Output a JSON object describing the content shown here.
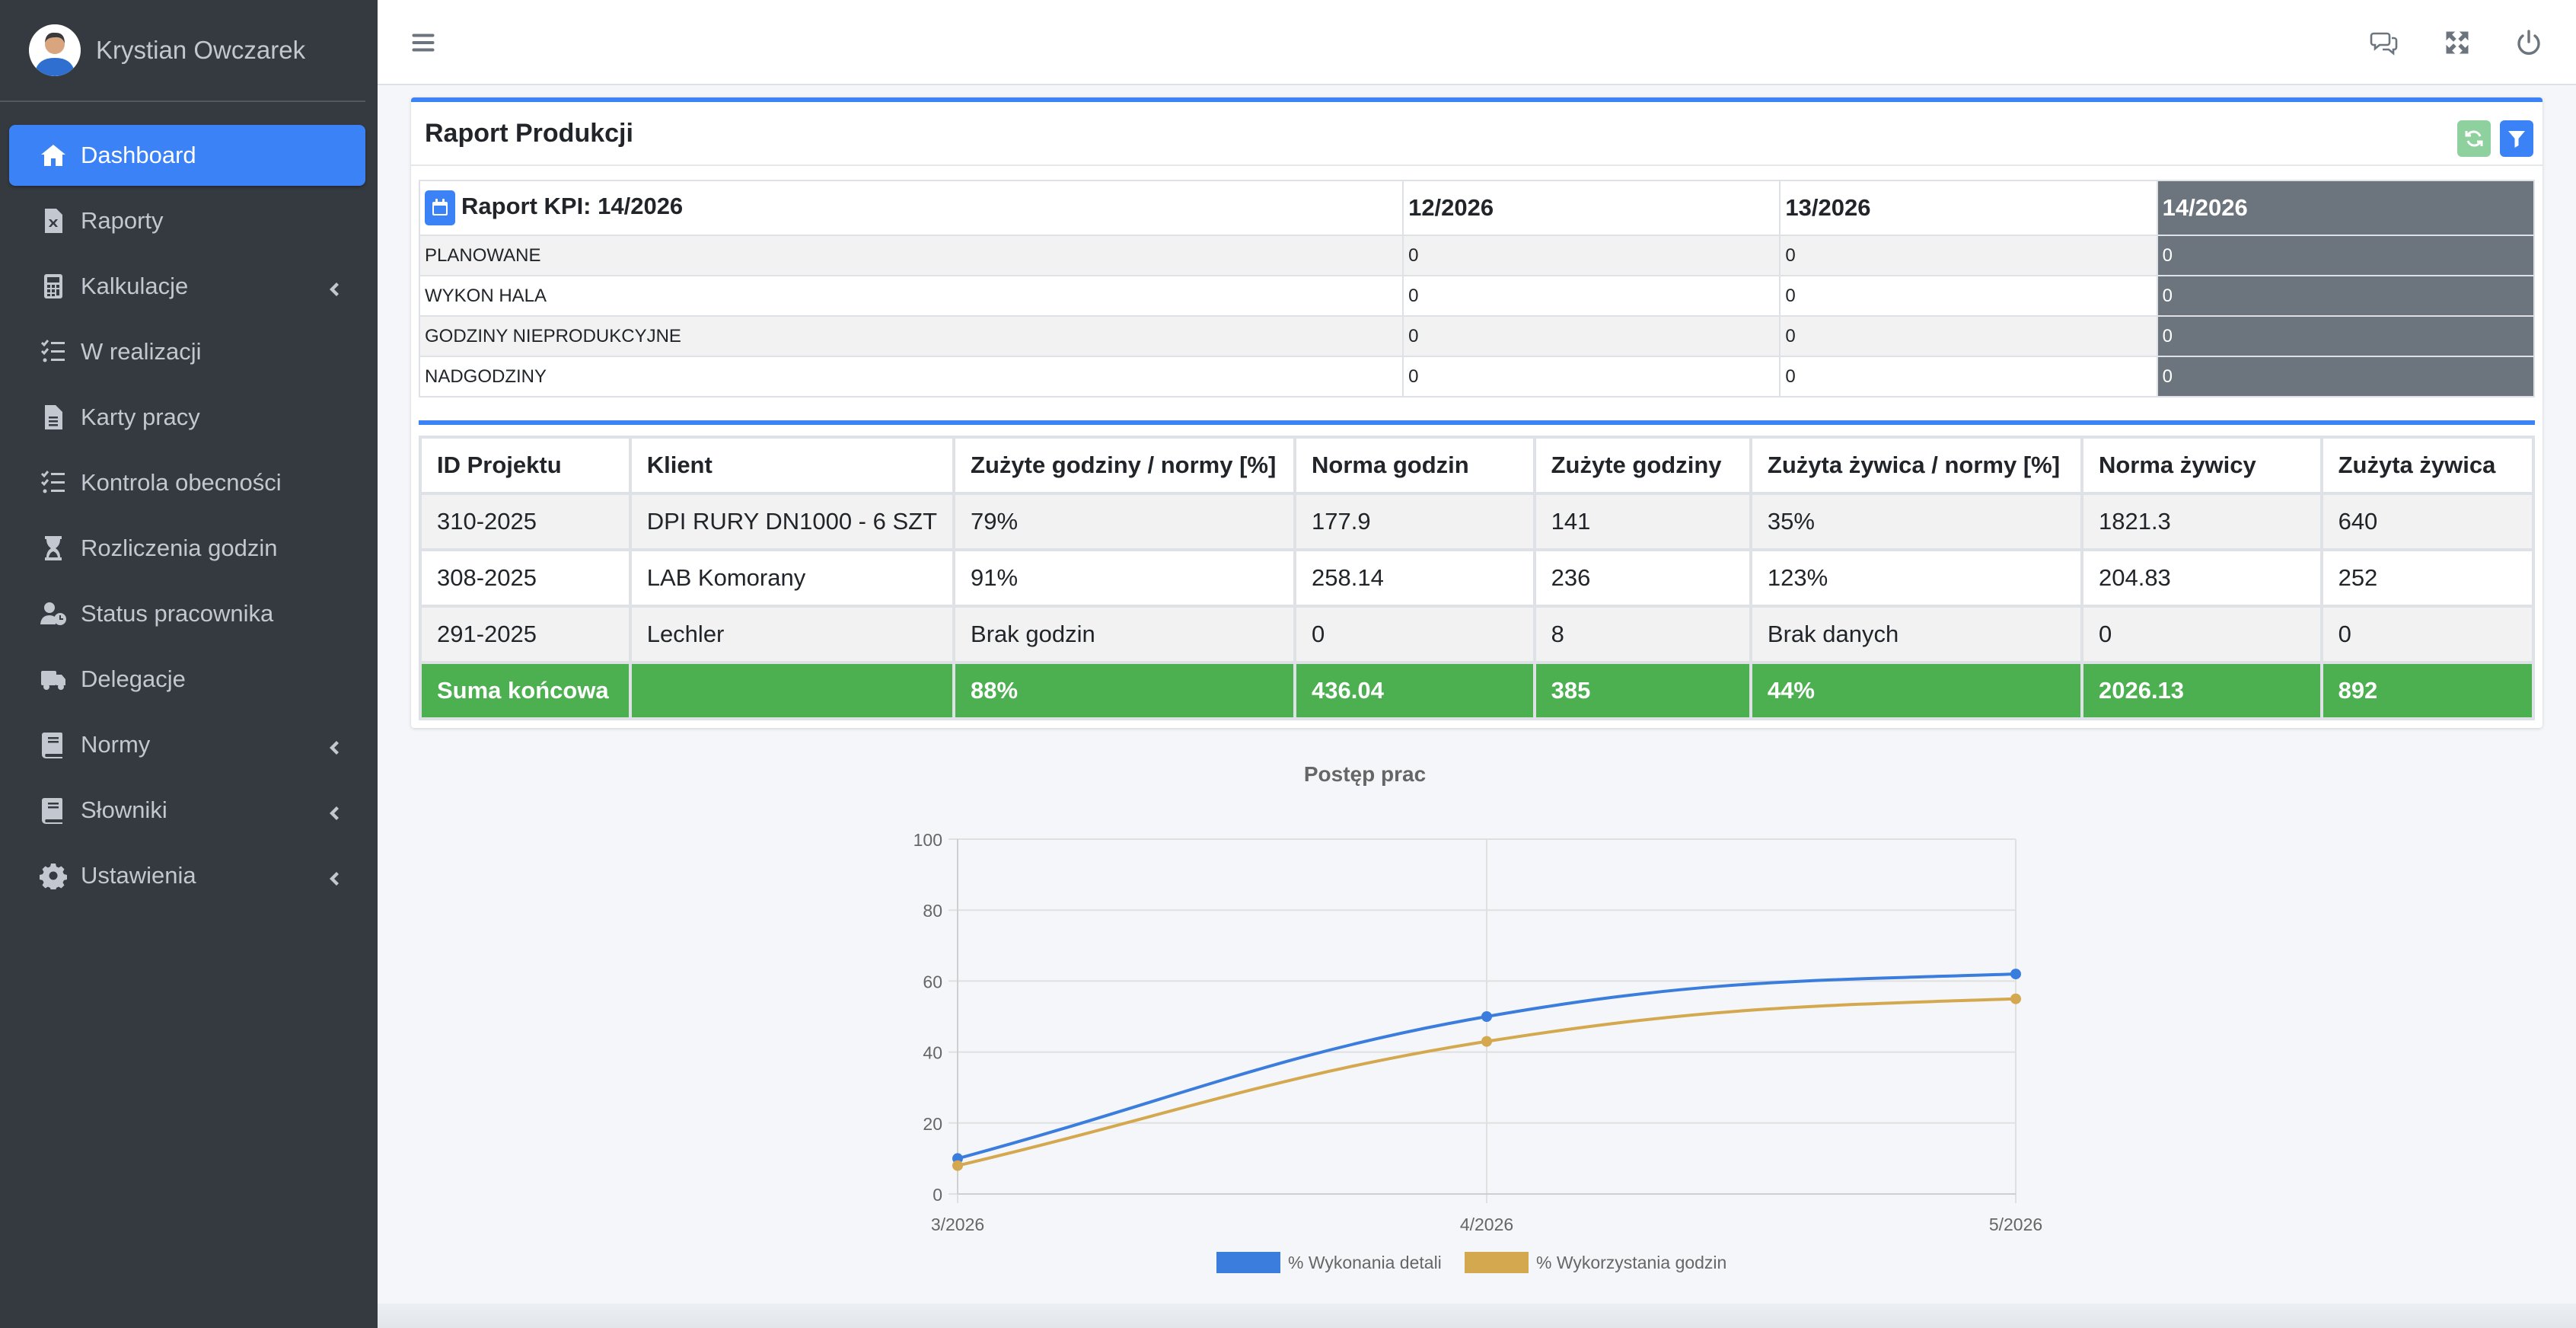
{
  "user": {
    "name": "Krystian Owczarek"
  },
  "sidebar": {
    "items": [
      {
        "label": "Dashboard",
        "icon": "home-icon",
        "active": true,
        "submenu": false
      },
      {
        "label": "Raporty",
        "icon": "file-excel-icon",
        "active": false,
        "submenu": false
      },
      {
        "label": "Kalkulacje",
        "icon": "calculator-icon",
        "active": false,
        "submenu": true
      },
      {
        "label": "W realizacji",
        "icon": "tasks-icon",
        "active": false,
        "submenu": false
      },
      {
        "label": "Karty pracy",
        "icon": "file-icon",
        "active": false,
        "submenu": false
      },
      {
        "label": "Kontrola obecności",
        "icon": "tasks-icon",
        "active": false,
        "submenu": false
      },
      {
        "label": "Rozliczenia godzin",
        "icon": "hourglass-icon",
        "active": false,
        "submenu": false
      },
      {
        "label": "Status pracownika",
        "icon": "user-clock-icon",
        "active": false,
        "submenu": false
      },
      {
        "label": "Delegacje",
        "icon": "truck-icon",
        "active": false,
        "submenu": false
      },
      {
        "label": "Normy",
        "icon": "book-icon",
        "active": false,
        "submenu": true
      },
      {
        "label": "Słowniki",
        "icon": "book-icon",
        "active": false,
        "submenu": true
      },
      {
        "label": "Ustawienia",
        "icon": "gear-icon",
        "active": false,
        "submenu": true
      }
    ]
  },
  "card": {
    "title": "Raport Produkcji"
  },
  "kpi": {
    "title": "Raport KPI: 14/2026",
    "weeks": [
      "12/2026",
      "13/2026",
      "14/2026"
    ],
    "rows": [
      {
        "label": "PLANOWANE",
        "values": [
          "0",
          "0",
          "0"
        ]
      },
      {
        "label": "WYKON HALA",
        "values": [
          "0",
          "0",
          "0"
        ]
      },
      {
        "label": "GODZINY NIEPRODUKCYJNE",
        "values": [
          "0",
          "0",
          "0"
        ]
      },
      {
        "label": "NADGODZINY",
        "values": [
          "0",
          "0",
          "0"
        ]
      }
    ]
  },
  "projects": {
    "headers": [
      "ID Projektu",
      "Klient",
      "Zużyte godziny / normy [%]",
      "Norma godzin",
      "Zużyte godziny",
      "Zużyta żywica / normy [%]",
      "Norma żywicy",
      "Zużyta żywica"
    ],
    "rows": [
      [
        "310-2025",
        "DPI RURY DN1000 - 6 SZT",
        "79%",
        "177.9",
        "141",
        "35%",
        "1821.3",
        "640"
      ],
      [
        "308-2025",
        "LAB Komorany",
        "91%",
        "258.14",
        "236",
        "123%",
        "204.83",
        "252"
      ],
      [
        "291-2025",
        "Lechler",
        "Brak godzin",
        "0",
        "8",
        "Brak danych",
        "0",
        "0"
      ]
    ],
    "total": [
      "Suma końcowa",
      "",
      "88%",
      "436.04",
      "385",
      "44%",
      "2026.13",
      "892"
    ]
  },
  "chart_data": {
    "type": "line",
    "title": "Postęp prac",
    "x": [
      "3/2026",
      "4/2026",
      "5/2026"
    ],
    "ylim": [
      0,
      100
    ],
    "yticks": [
      "0",
      "20",
      "40",
      "60",
      "80",
      "100"
    ],
    "grid": true,
    "legend_position": "bottom",
    "series": [
      {
        "name": "% Wykonania detali",
        "values": [
          10,
          50,
          62
        ],
        "color": "#3b7ddd"
      },
      {
        "name": "% Wykorzystania godzin",
        "values": [
          8,
          43,
          55
        ],
        "color": "#d4a84e"
      }
    ]
  },
  "colors": {
    "accent": "#3b82f6",
    "success": "#4caf50",
    "sidebar_bg": "#343a40",
    "refresh": "#8fd19e"
  }
}
